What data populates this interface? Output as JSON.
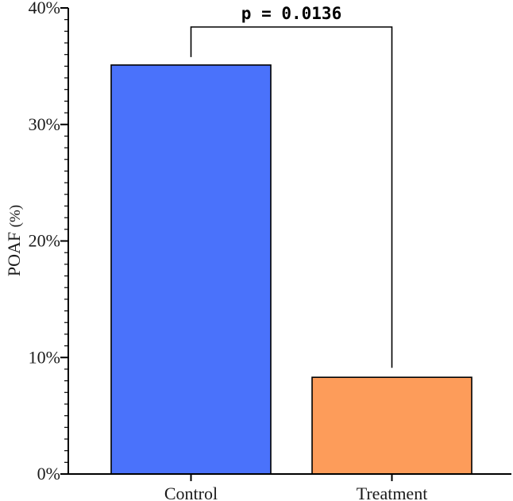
{
  "chart_data": {
    "type": "bar",
    "categories": [
      "Control",
      "Treatment"
    ],
    "values": [
      35.1,
      8.3
    ],
    "colors": [
      "#4a72fb",
      "#fd9c5a"
    ],
    "ylabel_main": "POAF",
    "ylabel_unit": "(%)",
    "xlabel": "",
    "title": "",
    "ylim": [
      0,
      40
    ],
    "yticks": [
      0,
      10,
      20,
      30,
      40
    ],
    "ytick_labels": [
      "0%",
      "10%",
      "20%",
      "30%",
      "40%"
    ],
    "minor_ticks_per_major": 10,
    "grid": false,
    "annotation": {
      "text": "p = 0.0136",
      "between": [
        "Control",
        "Treatment"
      ]
    }
  }
}
